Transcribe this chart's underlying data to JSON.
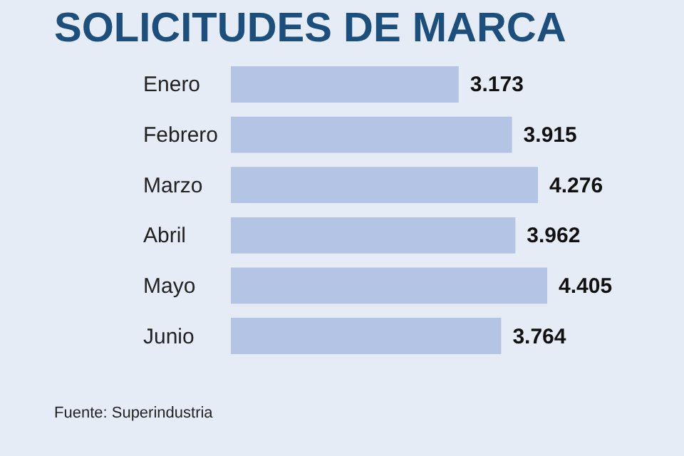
{
  "chart_data": {
    "type": "bar",
    "orientation": "horizontal",
    "title": "SOLICITUDES DE MARCA",
    "categories": [
      "Enero",
      "Febrero",
      "Marzo",
      "Abril",
      "Mayo",
      "Junio"
    ],
    "values": [
      3173,
      3915,
      4276,
      3962,
      4405,
      3764
    ],
    "value_labels": [
      "3.173",
      "3.915",
      "4.276",
      "3.962",
      "4.405",
      "3.764"
    ],
    "color": "#b4c4e4",
    "annotations": [
      "Fuente: Superindustria"
    ]
  }
}
